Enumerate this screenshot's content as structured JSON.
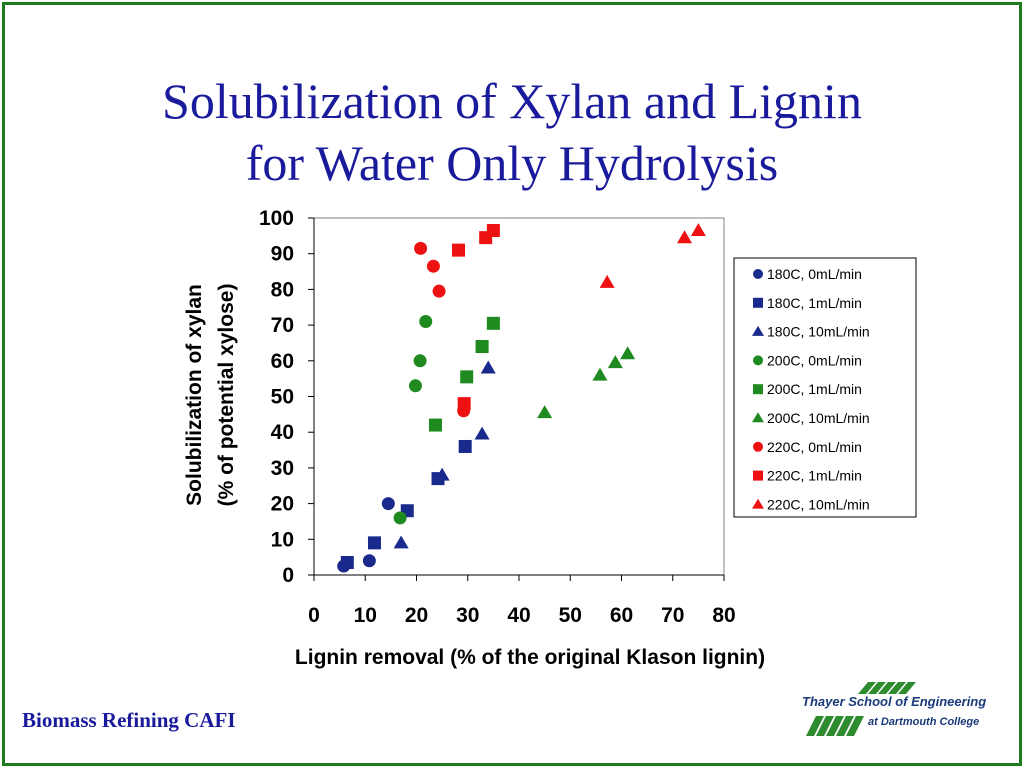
{
  "slide": {
    "title_line1": "Solubilization of Xylan and Lignin",
    "title_line2": "for Water Only Hydrolysis",
    "footer_left": "Biomass Refining CAFI",
    "logo_line1": "Thayer School of Engineering",
    "logo_line2": "at Dartmouth College"
  },
  "colors": {
    "frame": "#1f7a1f",
    "title": "#1a1a9c",
    "blue": "#1a2a8c",
    "green": "#1f8a1f",
    "red": "#ee1111"
  },
  "chart_data": {
    "type": "scatter",
    "title": "",
    "xlabel": "Lignin removal (% of the original Klason lignin)",
    "ylabel_line1": "Solubilization of xylan",
    "ylabel_line2": "(% of potential xylose)",
    "xlim": [
      0,
      80
    ],
    "ylim": [
      0,
      100
    ],
    "xticks": [
      0,
      10,
      20,
      30,
      40,
      50,
      60,
      70,
      80
    ],
    "yticks": [
      0,
      10,
      20,
      30,
      40,
      50,
      60,
      70,
      80,
      90,
      100
    ],
    "grid": false,
    "legend_position": "right",
    "series": [
      {
        "name": "180C, 0mL/min",
        "marker": "circle",
        "color": "#1a2a8c",
        "points": [
          [
            5.8,
            2.5
          ],
          [
            10.8,
            4
          ],
          [
            14.5,
            20
          ]
        ]
      },
      {
        "name": "180C, 1mL/min",
        "marker": "square",
        "color": "#1a2a8c",
        "points": [
          [
            6.5,
            3.5
          ],
          [
            11.8,
            9
          ],
          [
            18.2,
            18
          ],
          [
            24.2,
            27
          ],
          [
            29.5,
            36
          ]
        ]
      },
      {
        "name": "180C, 10mL/min",
        "marker": "triangle",
        "color": "#1a2a8c",
        "points": [
          [
            17,
            9
          ],
          [
            25,
            28
          ],
          [
            32.8,
            39.5
          ],
          [
            34,
            58
          ]
        ]
      },
      {
        "name": "200C, 0mL/min",
        "marker": "circle",
        "color": "#1f8a1f",
        "points": [
          [
            16.8,
            16
          ],
          [
            19.8,
            53
          ],
          [
            20.7,
            60
          ],
          [
            21.8,
            71
          ]
        ]
      },
      {
        "name": "200C, 1mL/min",
        "marker": "square",
        "color": "#1f8a1f",
        "points": [
          [
            23.7,
            42
          ],
          [
            29.8,
            55.5
          ],
          [
            32.8,
            64
          ],
          [
            35,
            70.5
          ]
        ]
      },
      {
        "name": "200C, 10mL/min",
        "marker": "triangle",
        "color": "#1f8a1f",
        "points": [
          [
            45,
            45.5
          ],
          [
            55.8,
            56
          ],
          [
            58.8,
            59.5
          ],
          [
            61.2,
            62
          ]
        ]
      },
      {
        "name": "220C, 0mL/min",
        "marker": "circle",
        "color": "#ee1111",
        "points": [
          [
            20.8,
            91.5
          ],
          [
            23.3,
            86.5
          ],
          [
            24.4,
            79.5
          ],
          [
            29.2,
            46
          ]
        ]
      },
      {
        "name": "220C, 1mL/min",
        "marker": "square",
        "color": "#ee1111",
        "points": [
          [
            28.2,
            91
          ],
          [
            29.3,
            48
          ],
          [
            33.5,
            94.5
          ],
          [
            35,
            96.5
          ]
        ]
      },
      {
        "name": "220C, 10mL/min",
        "marker": "triangle",
        "color": "#ee1111",
        "points": [
          [
            57.2,
            82
          ],
          [
            72.3,
            94.5
          ],
          [
            75,
            96.5
          ]
        ]
      }
    ]
  }
}
